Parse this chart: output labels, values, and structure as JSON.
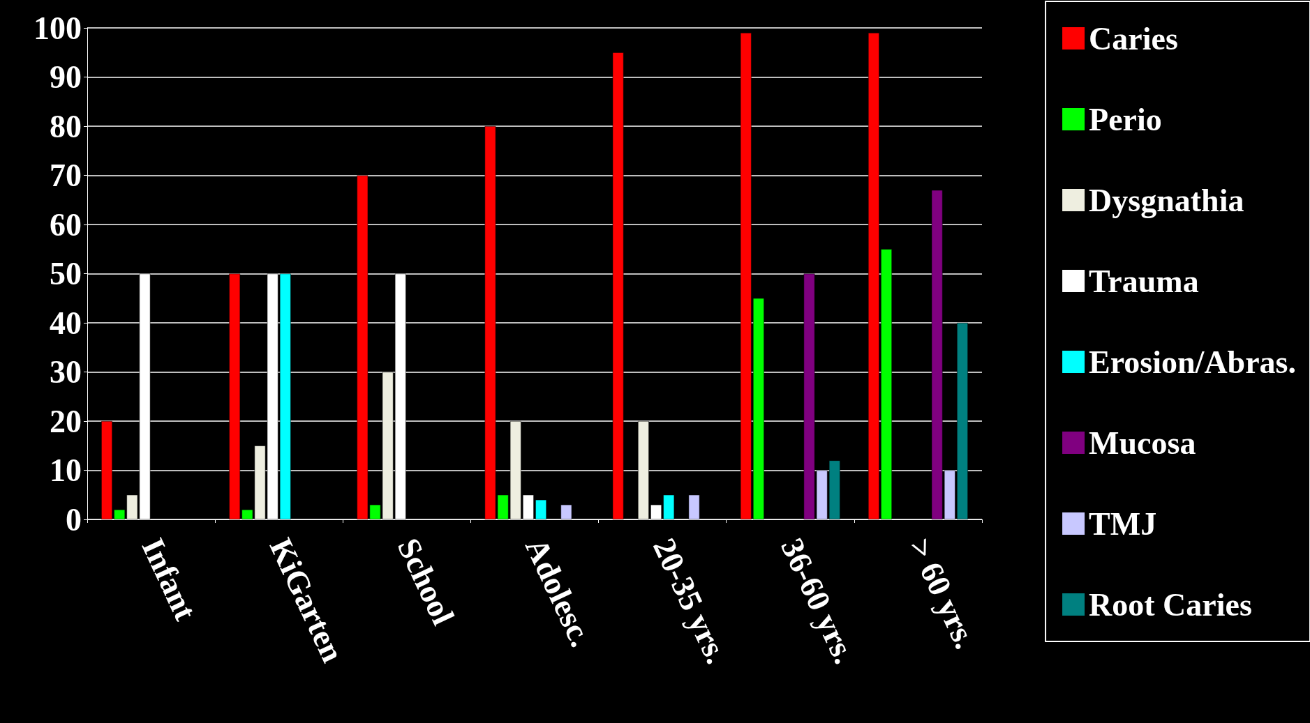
{
  "chart_data": {
    "type": "bar",
    "categories": [
      "Infant",
      "KiGarten",
      "School",
      "Adolesc.",
      "20-35 yrs.",
      "36-60 yrs.",
      "> 60 yrs."
    ],
    "series": [
      {
        "name": "Caries",
        "color": "#ff0000",
        "values": [
          20,
          50,
          70,
          80,
          95,
          99,
          99
        ]
      },
      {
        "name": "Perio",
        "color": "#00ff00",
        "values": [
          2,
          2,
          3,
          5,
          null,
          45,
          55
        ]
      },
      {
        "name": "Dysgnathia",
        "color": "#eeeee0",
        "values": [
          5,
          15,
          30,
          20,
          20,
          null,
          null
        ]
      },
      {
        "name": "Trauma",
        "color": "#ffffff",
        "values": [
          50,
          50,
          50,
          5,
          3,
          null,
          null
        ]
      },
      {
        "name": "Erosion/Abras.",
        "color": "#00ffff",
        "values": [
          null,
          50,
          null,
          4,
          5,
          null,
          null
        ]
      },
      {
        "name": "Mucosa",
        "color": "#800080",
        "values": [
          null,
          null,
          null,
          null,
          null,
          50,
          67
        ]
      },
      {
        "name": "TMJ",
        "color": "#c8c8ff",
        "values": [
          null,
          null,
          null,
          3,
          5,
          10,
          10
        ]
      },
      {
        "name": "Root Caries",
        "color": "#008080",
        "values": [
          null,
          null,
          null,
          null,
          null,
          12,
          40
        ]
      }
    ],
    "ylim": [
      0,
      100
    ],
    "yticks": [
      0,
      10,
      20,
      30,
      40,
      50,
      60,
      70,
      80,
      90,
      100
    ],
    "grid": "y",
    "legend": "right"
  }
}
